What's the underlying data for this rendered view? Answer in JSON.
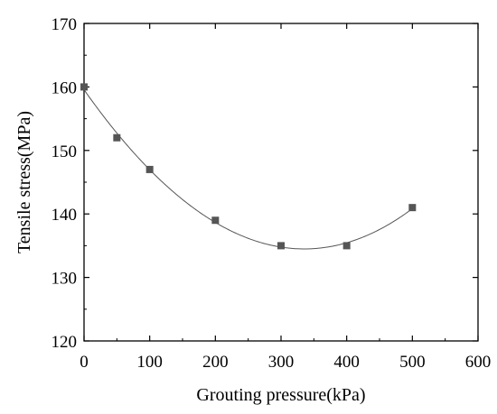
{
  "chart_data": {
    "type": "scatter",
    "xlabel": "Grouting pressure(kPa)",
    "ylabel": "Tensile stress(MPa)",
    "xlim": [
      0,
      600
    ],
    "ylim": [
      120,
      170
    ],
    "x_ticks": [
      "0",
      "100",
      "200",
      "300",
      "400",
      "500",
      "600"
    ],
    "y_ticks": [
      "120",
      "130",
      "140",
      "150",
      "160",
      "170"
    ],
    "grid": false,
    "legend": "none",
    "series": [
      {
        "points": [
          {
            "x": 0,
            "y": 160
          },
          {
            "x": 50,
            "y": 152
          },
          {
            "x": 100,
            "y": 147
          },
          {
            "x": 200,
            "y": 139
          },
          {
            "x": 300,
            "y": 135
          },
          {
            "x": 400,
            "y": 135
          },
          {
            "x": 500,
            "y": 141
          }
        ],
        "trendline": "smooth-curve",
        "marker": "square",
        "marker_color": "#555555",
        "line_color": "#555555"
      }
    ]
  }
}
